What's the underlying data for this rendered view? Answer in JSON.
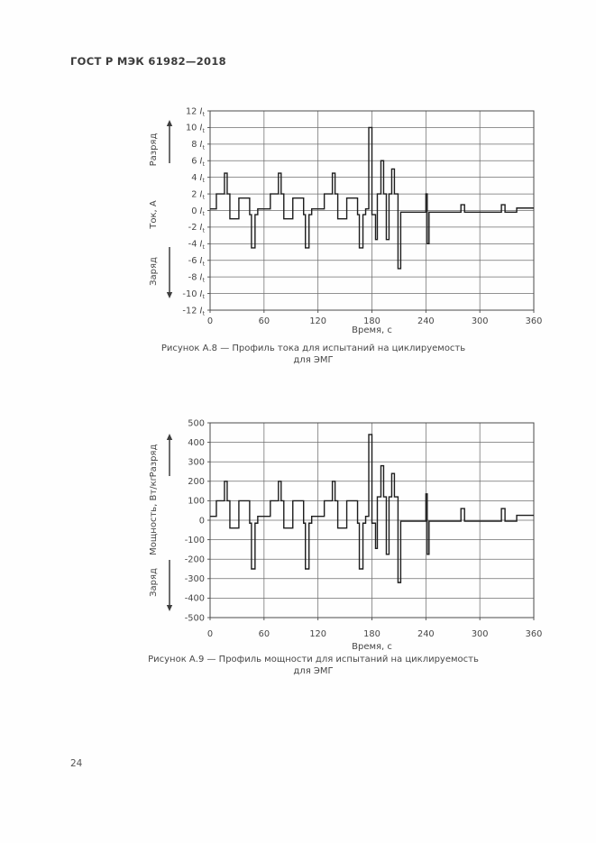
{
  "header": "ГОСТ Р МЭК 61982—2018",
  "page_number": "24",
  "chart_data": [
    {
      "type": "line",
      "subtype": "step-profile",
      "caption_line1": "Рисунок А.8 — Профиль тока для испытаний на циклируемость",
      "caption_line2": "для ЭМГ",
      "xlabel": "Время, с",
      "ylabel": "Ток, А",
      "discharge_label": "Разряд",
      "charge_label": "Заряд",
      "xlim": [
        0,
        360
      ],
      "ylim": [
        -12,
        12
      ],
      "x_ticks": [
        0,
        60,
        120,
        180,
        240,
        300,
        360
      ],
      "y_ticks": [
        12,
        10,
        8,
        6,
        4,
        2,
        0,
        -2,
        -4,
        -6,
        -8,
        -10,
        -12
      ],
      "y_tick_unit": "It",
      "grid": true,
      "legend": false,
      "steps": [
        [
          0,
          0.2
        ],
        [
          7,
          2
        ],
        [
          16,
          4.5
        ],
        [
          19,
          2
        ],
        [
          22,
          -1
        ],
        [
          32,
          1.5
        ],
        [
          44,
          -0.5
        ],
        [
          46,
          -4.5
        ],
        [
          50,
          -0.5
        ],
        [
          53,
          0.2
        ],
        [
          67,
          2
        ],
        [
          76,
          4.5
        ],
        [
          79,
          2
        ],
        [
          82,
          -1
        ],
        [
          92,
          1.5
        ],
        [
          104,
          -0.5
        ],
        [
          106,
          -4.5
        ],
        [
          110,
          -0.5
        ],
        [
          113,
          0.2
        ],
        [
          127,
          2
        ],
        [
          136,
          4.5
        ],
        [
          139,
          2
        ],
        [
          142,
          -1
        ],
        [
          152,
          1.5
        ],
        [
          164,
          -0.5
        ],
        [
          166,
          -4.5
        ],
        [
          170,
          -0.5
        ],
        [
          173,
          0.2
        ],
        [
          176.5,
          10
        ],
        [
          180,
          -0.5
        ],
        [
          184,
          -3.5
        ],
        [
          186,
          2
        ],
        [
          190,
          6
        ],
        [
          193,
          2
        ],
        [
          196,
          -3.5
        ],
        [
          199,
          2
        ],
        [
          202,
          5
        ],
        [
          205,
          2
        ],
        [
          209,
          -7
        ],
        [
          212,
          -0.2
        ],
        [
          240,
          2
        ],
        [
          241.5,
          -4
        ],
        [
          243.5,
          -0.2
        ],
        [
          279,
          0.7
        ],
        [
          283,
          -0.2
        ],
        [
          324,
          0.7
        ],
        [
          328,
          -0.2
        ],
        [
          341,
          0.3
        ]
      ]
    },
    {
      "type": "line",
      "subtype": "step-profile",
      "caption_line1": "Рисунок А.9 — Профиль мощности для испытаний на циклируемость",
      "caption_line2": "для ЭМГ",
      "xlabel": "Время, с",
      "ylabel": "Мощность, Вт/кг",
      "discharge_label": "Разряд",
      "charge_label": "Заряд",
      "xlim": [
        0,
        360
      ],
      "ylim": [
        -500,
        500
      ],
      "x_ticks": [
        0,
        60,
        120,
        180,
        240,
        300,
        360
      ],
      "y_ticks": [
        500,
        400,
        300,
        200,
        100,
        0,
        -100,
        -200,
        -300,
        -400,
        -500
      ],
      "y_tick_unit": null,
      "grid": true,
      "legend": false,
      "steps": [
        [
          0,
          20
        ],
        [
          7,
          100
        ],
        [
          16,
          200
        ],
        [
          19,
          100
        ],
        [
          22,
          -40
        ],
        [
          32,
          100
        ],
        [
          44,
          -15
        ],
        [
          46,
          -250
        ],
        [
          50,
          -15
        ],
        [
          53,
          20
        ],
        [
          67,
          100
        ],
        [
          76,
          200
        ],
        [
          79,
          100
        ],
        [
          82,
          -40
        ],
        [
          92,
          100
        ],
        [
          104,
          -15
        ],
        [
          106,
          -250
        ],
        [
          110,
          -15
        ],
        [
          113,
          20
        ],
        [
          127,
          100
        ],
        [
          136,
          200
        ],
        [
          139,
          100
        ],
        [
          142,
          -40
        ],
        [
          152,
          100
        ],
        [
          164,
          -15
        ],
        [
          166,
          -250
        ],
        [
          170,
          -15
        ],
        [
          173,
          20
        ],
        [
          176.5,
          440
        ],
        [
          180,
          -15
        ],
        [
          184,
          -145
        ],
        [
          186,
          120
        ],
        [
          190,
          280
        ],
        [
          193,
          120
        ],
        [
          196,
          -175
        ],
        [
          199,
          120
        ],
        [
          202,
          240
        ],
        [
          205,
          120
        ],
        [
          209,
          -320
        ],
        [
          212,
          -5
        ],
        [
          240,
          135
        ],
        [
          241.5,
          -175
        ],
        [
          243.5,
          -5
        ],
        [
          279,
          60
        ],
        [
          283,
          -5
        ],
        [
          324,
          60
        ],
        [
          328,
          -5
        ],
        [
          341,
          25
        ]
      ]
    }
  ]
}
